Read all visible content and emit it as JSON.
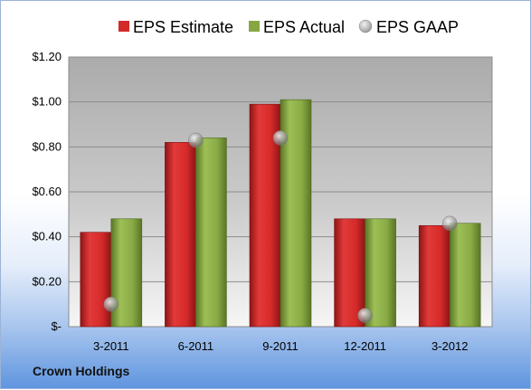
{
  "company": "Crown Holdings",
  "chart_data": {
    "type": "bar",
    "categories": [
      "3-2011",
      "6-2011",
      "9-2011",
      "12-2011",
      "3-2012"
    ],
    "series": [
      {
        "name": "EPS Estimate",
        "kind": "bar",
        "color": "#d42a2a",
        "values": [
          0.42,
          0.82,
          0.99,
          0.48,
          0.45
        ]
      },
      {
        "name": "EPS Actual",
        "kind": "bar",
        "color": "#86a842",
        "values": [
          0.48,
          0.84,
          1.01,
          0.48,
          0.46
        ]
      },
      {
        "name": "EPS GAAP",
        "kind": "marker",
        "color": "#b7b7b7",
        "values": [
          0.1,
          0.83,
          0.84,
          0.05,
          0.46
        ]
      }
    ],
    "ylim": [
      0,
      1.2
    ],
    "yticks": [
      0,
      0.2,
      0.4,
      0.6,
      0.8,
      1.0,
      1.2
    ],
    "ytick_labels": [
      "$-",
      "$0.20",
      "$0.40",
      "$0.60",
      "$0.80",
      "$1.00",
      "$1.20"
    ],
    "legend_position": "top",
    "grid": true
  }
}
